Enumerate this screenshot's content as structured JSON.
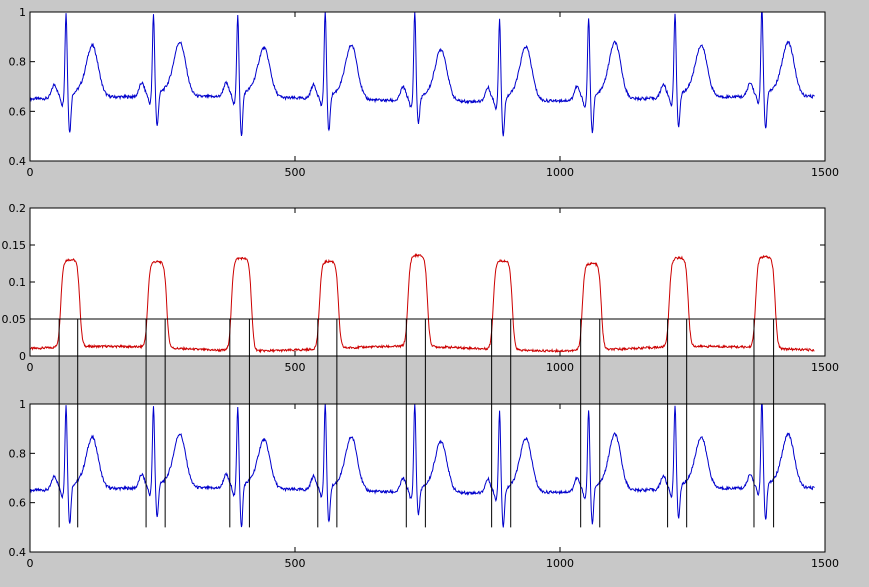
{
  "figure": {
    "background": "#c8c8c8",
    "axes_background": "#ffffff"
  },
  "chart_data": [
    {
      "type": "line",
      "title": "",
      "xlabel": "",
      "ylabel": "",
      "xlim": [
        0,
        1500
      ],
      "ylim": [
        0.4,
        1.0
      ],
      "x_ticks": [
        0,
        500,
        1000,
        1500
      ],
      "x_tick_labels": [
        "0",
        "500",
        "1000",
        "1500"
      ],
      "y_ticks": [
        0.4,
        0.6,
        0.8,
        1.0
      ],
      "y_tick_labels": [
        "0.4",
        "0.6",
        "0.8",
        "1"
      ],
      "grid": false,
      "legend": "none",
      "series": [
        {
          "color": "#0000cc",
          "baseline": 0.65,
          "r_peaks": [
            68,
            233,
            392,
            557,
            726,
            886,
            1054,
            1217,
            1381
          ],
          "r_amplitude": [
            0.96,
            0.95,
            0.95,
            0.97,
            0.98,
            0.95,
            0.95,
            0.96,
            0.98
          ],
          "s_trough": [
            0.52,
            0.54,
            0.5,
            0.53,
            0.57,
            0.52,
            0.53,
            0.54,
            0.53
          ],
          "t_amplitude": [
            0.85,
            0.86,
            0.84,
            0.86,
            0.85,
            0.86,
            0.87,
            0.85,
            0.86
          ],
          "x_range": [
            0,
            1480
          ]
        }
      ]
    },
    {
      "type": "line",
      "title": "",
      "xlabel": "",
      "ylabel": "",
      "xlim": [
        0,
        1500
      ],
      "ylim": [
        0,
        0.2
      ],
      "x_ticks": [
        0,
        500,
        1000,
        1500
      ],
      "x_tick_labels": [
        "0",
        "500",
        "1000",
        "1500"
      ],
      "y_ticks": [
        0,
        0.05,
        0.1,
        0.15,
        0.2
      ],
      "y_tick_labels": [
        "0",
        "0.05",
        "0.1",
        "0.15",
        "0.2"
      ],
      "grid": false,
      "legend": "none",
      "series": [
        {
          "color": "#cc0000",
          "baseline": 0.01,
          "pulses": [
            {
              "start": 58,
              "end": 94,
              "height": 0.128
            },
            {
              "start": 222,
              "end": 258,
              "height": 0.126
            },
            {
              "start": 380,
              "end": 418,
              "height": 0.135
            },
            {
              "start": 546,
              "end": 582,
              "height": 0.128
            },
            {
              "start": 713,
              "end": 750,
              "height": 0.133
            },
            {
              "start": 874,
              "end": 910,
              "height": 0.13
            },
            {
              "start": 1042,
              "end": 1078,
              "height": 0.127
            },
            {
              "start": 1206,
              "end": 1242,
              "height": 0.13
            },
            {
              "start": 1369,
              "end": 1406,
              "height": 0.133
            }
          ],
          "x_range": [
            0,
            1480
          ]
        }
      ],
      "threshold": {
        "y": 0.05,
        "color": "#000000"
      }
    },
    {
      "type": "line",
      "title": "",
      "xlabel": "",
      "ylabel": "",
      "xlim": [
        0,
        1500
      ],
      "ylim": [
        0.4,
        1.0
      ],
      "x_ticks": [
        0,
        500,
        1000,
        1500
      ],
      "x_tick_labels": [
        "0",
        "500",
        "1000",
        "1500"
      ],
      "y_ticks": [
        0.4,
        0.6,
        0.8,
        1.0
      ],
      "y_tick_labels": [
        "0.4",
        "0.6",
        "0.8",
        "1"
      ],
      "grid": false,
      "legend": "none",
      "series": [
        {
          "color": "#0000cc",
          "same_signal_as_chart": 0
        }
      ],
      "window_markers": {
        "color": "#000000",
        "x": [
          55,
          90,
          219,
          255,
          377,
          414,
          543,
          579,
          710,
          746,
          871,
          907,
          1039,
          1075,
          1203,
          1239,
          1366,
          1403
        ],
        "y_bottom": 0.5,
        "extends_to_chart": 1,
        "extends_to_y": 0.05
      }
    }
  ]
}
